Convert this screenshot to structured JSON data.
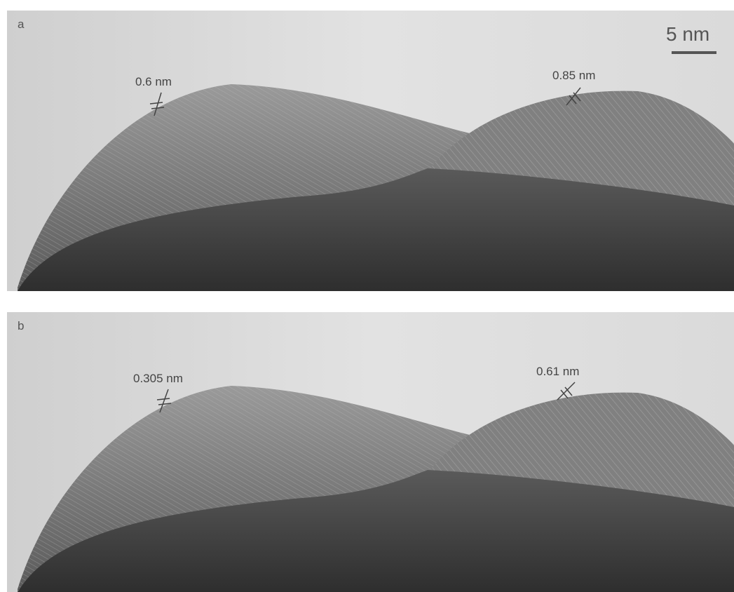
{
  "scale_bar": "5 nm",
  "panels": [
    {
      "label": "a",
      "annotations": [
        "0.6 nm",
        "0.85 nm"
      ]
    },
    {
      "label": "b",
      "annotations": [
        "0.305 nm",
        "0.61 nm"
      ]
    }
  ]
}
